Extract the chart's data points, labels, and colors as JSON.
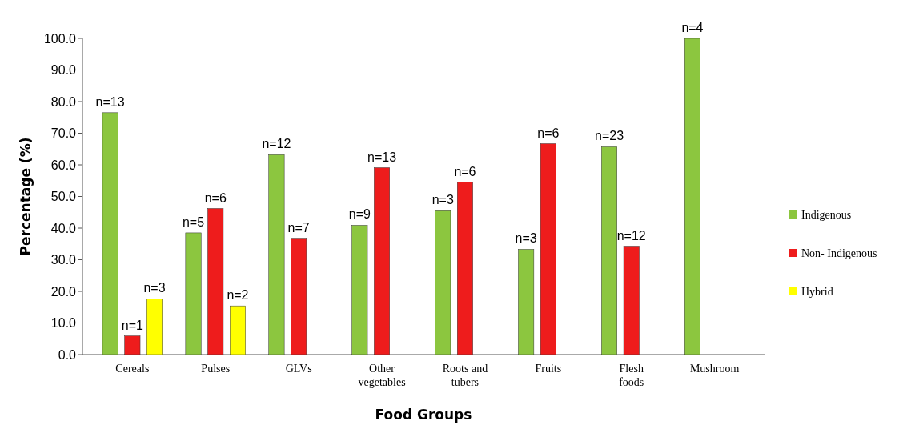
{
  "chart_data": {
    "type": "bar",
    "xlabel": "Food Groups",
    "ylabel": "Percentage (%)",
    "categories": [
      "Cereals",
      "Pulses",
      "GLVs",
      "Other vegetables",
      "Roots and tubers",
      "Fruits",
      "Flesh foods",
      "Mushroom"
    ],
    "series": [
      {
        "name": "Indigenous",
        "color": "#8cc63f",
        "values": [
          76.5,
          38.5,
          63.2,
          40.9,
          45.5,
          33.3,
          65.7,
          100
        ]
      },
      {
        "name": "Non- Indigenous",
        "color": "#ee1c1c",
        "values": [
          5.9,
          46.2,
          36.8,
          59.1,
          54.5,
          66.7,
          34.3,
          null
        ]
      },
      {
        "name": "Hybrid",
        "color": "#ffff00",
        "values": [
          17.6,
          15.4,
          null,
          null,
          null,
          null,
          null,
          null
        ]
      }
    ],
    "annotations": [
      "n=13",
      "n=1",
      "n=3",
      "n=5",
      "n=6",
      "n=2",
      "n=12",
      "n=7",
      "n=9",
      "n=13",
      "n=3",
      "n=6",
      "n=3",
      "n=6",
      "n=23",
      "n=12",
      "n=4"
    ],
    "ylim": [
      0,
      100
    ],
    "yticks": [
      {
        "value": 0,
        "label": "0.0"
      },
      {
        "value": 10,
        "label": "10.0"
      },
      {
        "value": 20,
        "label": "20.0"
      },
      {
        "value": 30,
        "label": "30.0"
      },
      {
        "value": 40,
        "label": "40.0"
      },
      {
        "value": 50,
        "label": "50.0"
      },
      {
        "value": 60,
        "label": "60.0"
      },
      {
        "value": 70,
        "label": "70.0"
      },
      {
        "value": 80,
        "label": "80.0"
      },
      {
        "value": 90,
        "label": "90.0"
      },
      {
        "value": 100,
        "label": "100.0"
      }
    ],
    "legend": "right",
    "grid": false
  }
}
